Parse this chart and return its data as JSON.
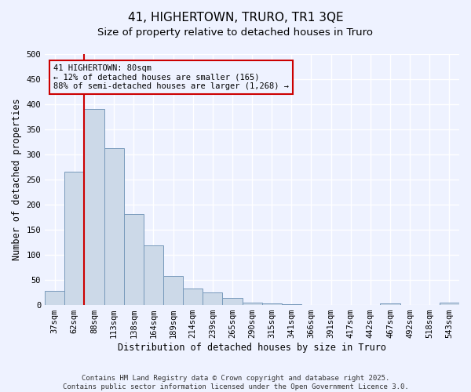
{
  "title": "41, HIGHERTOWN, TRURO, TR1 3QE",
  "subtitle": "Size of property relative to detached houses in Truro",
  "xlabel": "Distribution of detached houses by size in Truro",
  "ylabel": "Number of detached properties",
  "categories": [
    "37sqm",
    "62sqm",
    "88sqm",
    "113sqm",
    "138sqm",
    "164sqm",
    "189sqm",
    "214sqm",
    "239sqm",
    "265sqm",
    "290sqm",
    "315sqm",
    "341sqm",
    "366sqm",
    "391sqm",
    "417sqm",
    "442sqm",
    "467sqm",
    "492sqm",
    "518sqm",
    "543sqm"
  ],
  "values": [
    29,
    265,
    390,
    313,
    182,
    119,
    58,
    33,
    25,
    14,
    5,
    4,
    1,
    0,
    0,
    0,
    0,
    3,
    0,
    0,
    5
  ],
  "bar_color": "#ccd9e8",
  "bar_edge_color": "#7799bb",
  "vline_x": 1.5,
  "vline_color": "#cc0000",
  "annotation_line1": "41 HIGHERTOWN: 80sqm",
  "annotation_line2": "← 12% of detached houses are smaller (165)",
  "annotation_line3": "88% of semi-detached houses are larger (1,268) →",
  "annotation_box_color": "#cc0000",
  "ylim": [
    0,
    500
  ],
  "yticks": [
    0,
    50,
    100,
    150,
    200,
    250,
    300,
    350,
    400,
    450,
    500
  ],
  "footer1": "Contains HM Land Registry data © Crown copyright and database right 2025.",
  "footer2": "Contains public sector information licensed under the Open Government Licence 3.0.",
  "title_fontsize": 11,
  "subtitle_fontsize": 9.5,
  "axis_label_fontsize": 8.5,
  "tick_fontsize": 7.5,
  "annotation_fontsize": 7.5,
  "footer_fontsize": 6.5,
  "background_color": "#eef2ff"
}
